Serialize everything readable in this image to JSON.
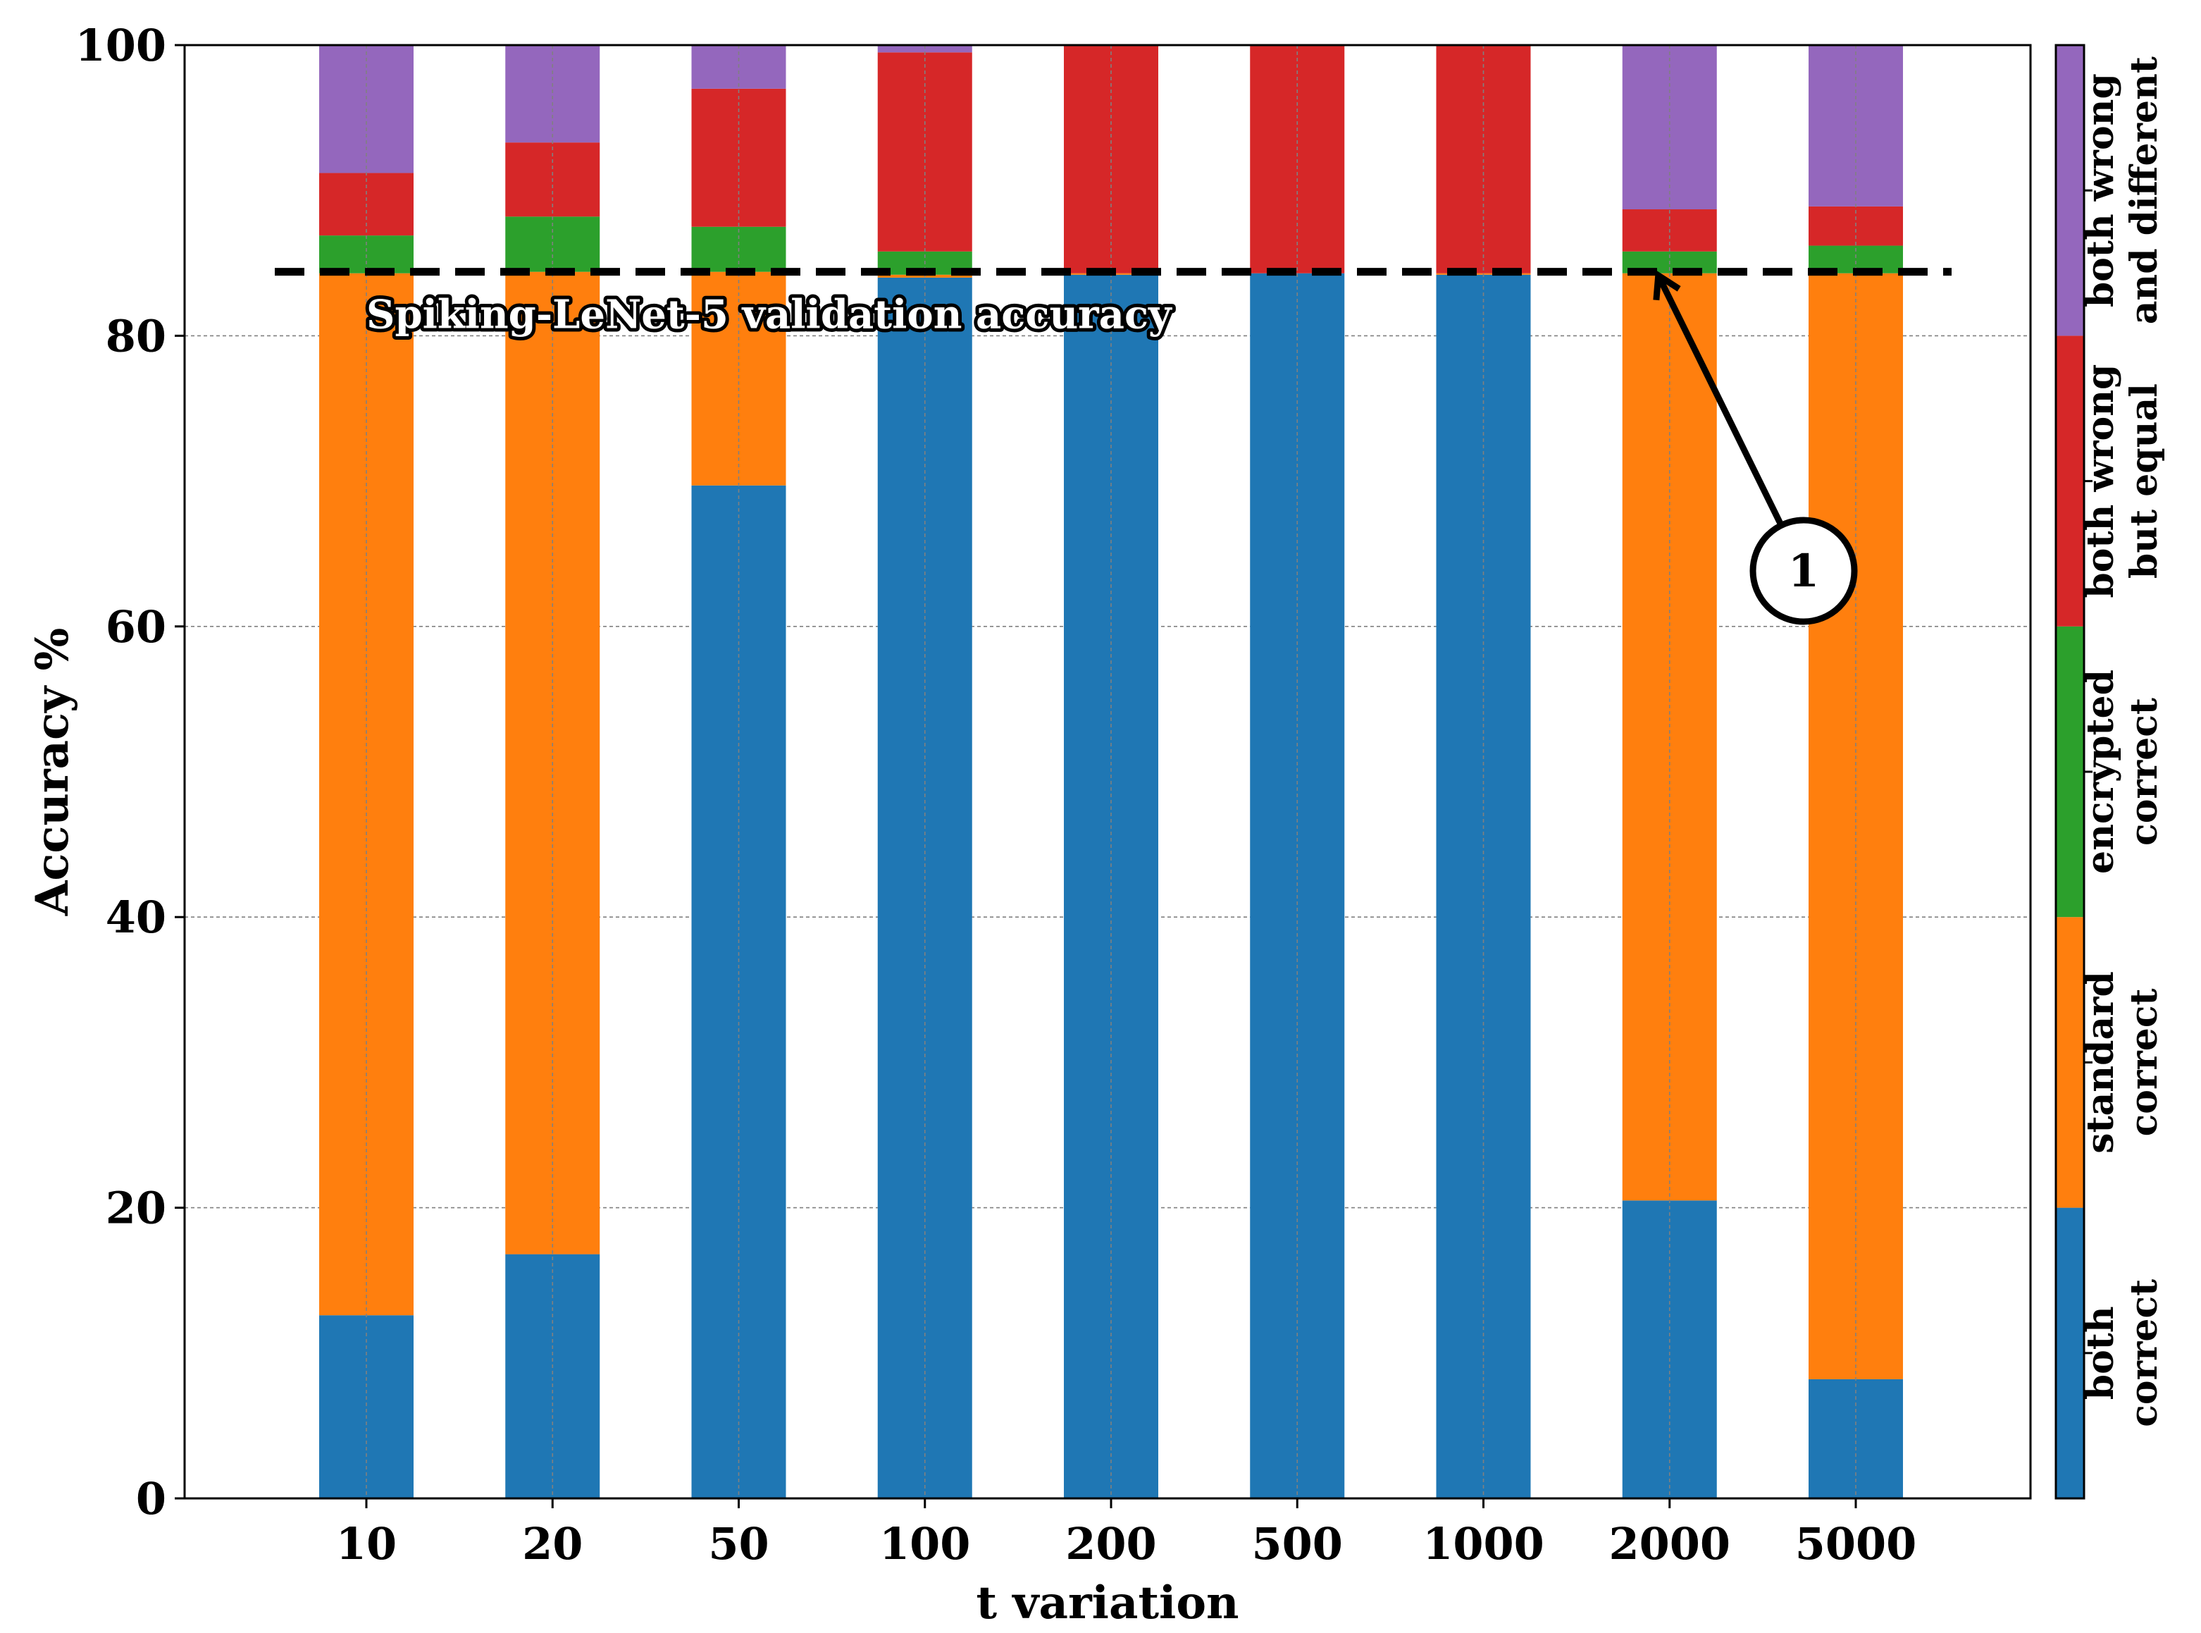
{
  "chart_data": {
    "type": "bar",
    "stacked": true,
    "xlabel": "t variation",
    "ylabel": "Accuracy %",
    "ylim": [
      0,
      100
    ],
    "yticks": [
      0,
      20,
      40,
      60,
      80,
      100
    ],
    "grid": true,
    "categories": [
      "10",
      "20",
      "50",
      "100",
      "200",
      "500",
      "1000",
      "2000",
      "5000"
    ],
    "series": [
      {
        "name": "both correct",
        "color": "#1f77b4",
        "values": [
          12.6,
          16.8,
          69.7,
          84.0,
          84.2,
          84.3,
          84.2,
          20.5,
          8.2
        ]
      },
      {
        "name": "standard correct",
        "color": "#ff7f0e",
        "values": [
          71.7,
          67.6,
          14.7,
          0.2,
          0.1,
          0.0,
          0.1,
          63.8,
          76.1
        ]
      },
      {
        "name": "encrypted correct",
        "color": "#2ca02c",
        "values": [
          2.6,
          3.8,
          3.1,
          1.6,
          0.0,
          0.0,
          0.0,
          1.5,
          1.9
        ]
      },
      {
        "name": "both wrong but equal",
        "color": "#d62728",
        "values": [
          4.3,
          5.1,
          9.5,
          13.7,
          15.7,
          15.7,
          15.7,
          2.9,
          2.7
        ]
      },
      {
        "name": "both wrong and different",
        "color": "#9467bd",
        "values": [
          8.8,
          6.7,
          3.0,
          0.5,
          0.0,
          0.0,
          0.0,
          11.3,
          11.1
        ]
      }
    ],
    "reference_line": {
      "label": "Spiking-LeNet-5 validation accuracy",
      "value": 84.4
    },
    "annotation": {
      "label": "1",
      "target_category": "2000",
      "target_value": 82.5
    },
    "colorbar_labels": [
      [
        "both",
        "correct"
      ],
      [
        "standard",
        "correct"
      ],
      [
        "encrypted",
        "correct"
      ],
      [
        "both wrong",
        "but equal"
      ],
      [
        "both wrong",
        "and different"
      ]
    ]
  }
}
